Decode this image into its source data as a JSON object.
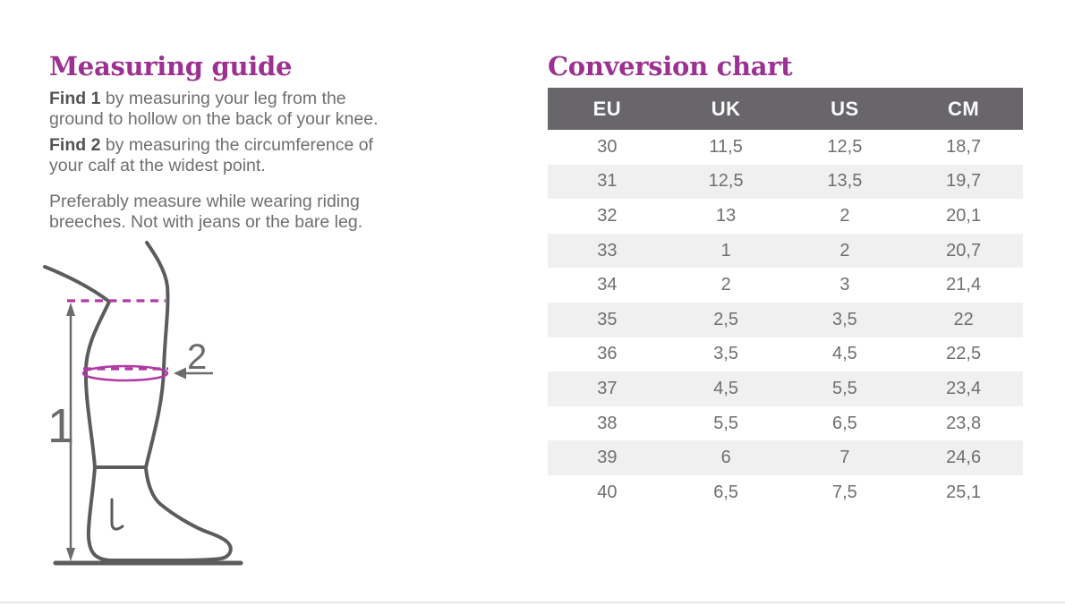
{
  "left": {
    "title": "Measuring guide",
    "paragraphs": [
      {
        "bold": "Find 1",
        "line1": " by measuring your leg from the",
        "line2": "ground to hollow on the back of your knee."
      },
      {
        "bold": "Find 2",
        "line1": " by measuring the circumference of",
        "line2": "your calf at the widest point."
      },
      {
        "bold": "",
        "line1": "Preferably measure while wearing riding",
        "line2": "breeches. Not with jeans or the bare leg."
      }
    ],
    "diagram": {
      "height_label": "1",
      "calf_label": "2"
    }
  },
  "right": {
    "title": "Conversion chart"
  },
  "chart_data": {
    "type": "table",
    "title": "Conversion chart",
    "columns": [
      "EU",
      "UK",
      "US",
      "CM"
    ],
    "rows": [
      [
        "30",
        "11,5",
        "12,5",
        "18,7"
      ],
      [
        "31",
        "12,5",
        "13,5",
        "19,7"
      ],
      [
        "32",
        "13",
        "2",
        "20,1"
      ],
      [
        "33",
        "1",
        "2",
        "20,7"
      ],
      [
        "34",
        "2",
        "3",
        "21,4"
      ],
      [
        "35",
        "2,5",
        "3,5",
        "22"
      ],
      [
        "36",
        "3,5",
        "4,5",
        "22,5"
      ],
      [
        "37",
        "4,5",
        "5,5",
        "23,4"
      ],
      [
        "38",
        "5,5",
        "6,5",
        "23,8"
      ],
      [
        "39",
        "6",
        "7",
        "24,6"
      ],
      [
        "40",
        "6,5",
        "7,5",
        "25,1"
      ]
    ]
  },
  "colors": {
    "heading_purple": "#9c3191",
    "measure_magenta": "#b238a3",
    "table_header_bg": "#68666a",
    "table_alt_row_bg": "#f1f0f0",
    "body_text_gray": "#6e6f71",
    "illustration_gray": "#5b5c5e"
  }
}
